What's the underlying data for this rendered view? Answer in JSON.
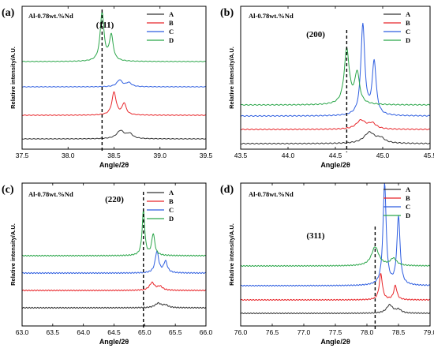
{
  "colors": {
    "A": "#333333",
    "B": "#e8262a",
    "C": "#2e5ee0",
    "D": "#2ba64a"
  },
  "chart_data": [
    {
      "type": "line",
      "panel": "(a)",
      "title": "Al-0.78wt.%Nd",
      "peak_label": "(111)",
      "xlabel": "Angle/2θ",
      "ylabel": "Relative intensity/A.U.",
      "xlim": [
        37.5,
        39.5
      ],
      "xticks": [
        "37.5",
        "38.0",
        "38.5",
        "39.0",
        "39.5"
      ],
      "reference_line_x": 38.37,
      "legend": [
        "A",
        "B",
        "C",
        "D"
      ],
      "series": [
        {
          "name": "A",
          "peaks": [
            [
              38.57,
              0.12,
              0.05
            ],
            [
              38.67,
              0.07,
              0.04
            ]
          ]
        },
        {
          "name": "B",
          "peaks": [
            [
              38.5,
              0.34,
              0.028
            ],
            [
              38.61,
              0.17,
              0.026
            ]
          ]
        },
        {
          "name": "C",
          "peaks": [
            [
              38.56,
              0.1,
              0.035
            ],
            [
              38.66,
              0.06,
              0.035
            ]
          ]
        },
        {
          "name": "D",
          "peaks": [
            [
              38.37,
              0.72,
              0.025
            ],
            [
              38.47,
              0.38,
              0.025
            ]
          ]
        }
      ]
    },
    {
      "type": "line",
      "panel": "(b)",
      "title": "Al-0.78wt.%Nd",
      "peak_label": "(200)",
      "xlabel": "Angle/2θ",
      "ylabel": "Relative intensity/A.U.",
      "xlim": [
        43.5,
        45.5
      ],
      "xticks": [
        "43.5",
        "44.0",
        "44.5",
        "45.0",
        "45.5"
      ],
      "reference_line_x": 44.62,
      "legend": [
        "A",
        "B",
        "C",
        "D"
      ],
      "series": [
        {
          "name": "A",
          "peaks": [
            [
              44.86,
              0.1,
              0.07
            ],
            [
              44.98,
              0.04,
              0.05
            ]
          ]
        },
        {
          "name": "B",
          "peaks": [
            [
              44.77,
              0.08,
              0.06
            ],
            [
              44.89,
              0.05,
              0.05
            ]
          ]
        },
        {
          "name": "C",
          "peaks": [
            [
              44.79,
              0.82,
              0.025
            ],
            [
              44.91,
              0.48,
              0.025
            ]
          ]
        },
        {
          "name": "D",
          "peaks": [
            [
              44.62,
              0.5,
              0.032
            ],
            [
              44.73,
              0.28,
              0.03
            ]
          ]
        }
      ]
    },
    {
      "type": "line",
      "panel": "(c)",
      "title": "Al-0.78wt.%Nd",
      "peak_label": "(220)",
      "xlabel": "Angle/2θ",
      "ylabel": "Relative intensity/A.U.",
      "xlim": [
        63.0,
        66.0
      ],
      "xticks": [
        "63.0",
        "63.5",
        "64.0",
        "64.5",
        "65.0",
        "65.5",
        "66.0"
      ],
      "reference_line_x": 64.98,
      "legend": [
        "A",
        "B",
        "C",
        "D"
      ],
      "series": [
        {
          "name": "A",
          "peaks": [
            [
              65.22,
              0.035,
              0.06
            ],
            [
              65.34,
              0.02,
              0.05
            ]
          ]
        },
        {
          "name": "B",
          "peaks": [
            [
              65.12,
              0.06,
              0.05
            ],
            [
              65.25,
              0.03,
              0.05
            ]
          ]
        },
        {
          "name": "C",
          "peaks": [
            [
              65.2,
              0.17,
              0.035
            ],
            [
              65.34,
              0.09,
              0.035
            ]
          ]
        },
        {
          "name": "D",
          "peaks": [
            [
              64.98,
              0.36,
              0.025
            ],
            [
              65.14,
              0.17,
              0.03
            ]
          ]
        }
      ]
    },
    {
      "type": "line",
      "panel": "(d)",
      "title": "Al-0.78wt.%Nd",
      "peak_label": "(311)",
      "xlabel": "Angle/2θ",
      "ylabel": "Relative intensity/A.U.",
      "xlim": [
        76.0,
        79.0
      ],
      "xticks": [
        "76.0",
        "76.5",
        "77.0",
        "77.5",
        "78.0",
        "78.5",
        "79.0"
      ],
      "reference_line_x": 78.13,
      "legend": [
        "A",
        "B",
        "C",
        "D"
      ],
      "series": [
        {
          "name": "A",
          "peaks": [
            [
              78.36,
              0.07,
              0.06
            ],
            [
              78.5,
              0.03,
              0.05
            ]
          ]
        },
        {
          "name": "B",
          "peaks": [
            [
              78.22,
              0.22,
              0.03
            ],
            [
              78.45,
              0.12,
              0.03
            ]
          ]
        },
        {
          "name": "C",
          "peaks": [
            [
              78.28,
              0.86,
              0.03
            ],
            [
              78.5,
              0.58,
              0.03
            ]
          ]
        },
        {
          "name": "D",
          "peaks": [
            [
              78.13,
              0.16,
              0.07
            ],
            [
              78.42,
              0.06,
              0.06
            ]
          ]
        }
      ]
    }
  ]
}
